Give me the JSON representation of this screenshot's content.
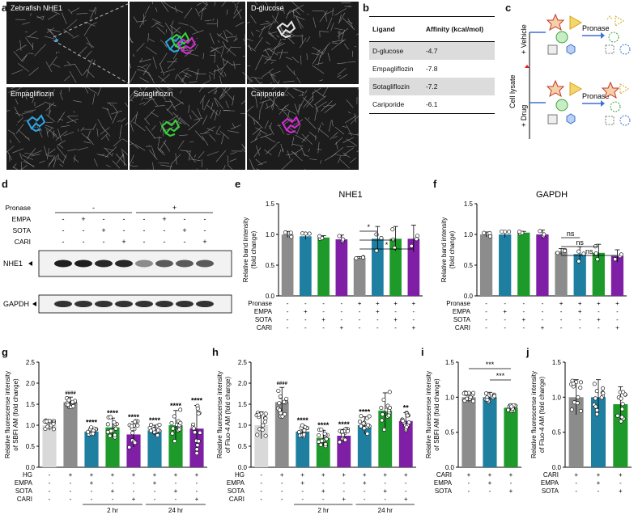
{
  "panels": {
    "a": "a",
    "b": "b",
    "c": "c",
    "d": "d",
    "e": "e",
    "f": "f",
    "g": "g",
    "h": "h",
    "i": "i",
    "j": "j"
  },
  "docking": {
    "tiles": [
      "Zebrafish NHE1",
      "",
      "D-glucose",
      "Empagliflozin",
      "Sotagliflozin",
      "Cariporide"
    ],
    "colors": {
      "cyan": "#2aa6e8",
      "green": "#3ad13a",
      "magenta": "#d62ad6",
      "white": "#e8e8e8"
    }
  },
  "affinity_table": {
    "headers": [
      "Ligand",
      "Affinity (kcal/mol)"
    ],
    "rows": [
      [
        "D-glucose",
        "-4.7"
      ],
      [
        "Empagliflozin",
        "-7.8"
      ],
      [
        "Sotagliflozin",
        "-7.2"
      ],
      [
        "Cariporide",
        "-6.1"
      ]
    ]
  },
  "darts": {
    "cell_lysate": "Cell lysate",
    "vehicle": "+ Vehicle",
    "drug": "+ Drug",
    "pronase": "Pronase"
  },
  "western": {
    "row_labels": [
      "Pronase",
      "EMPA",
      "SOTA",
      "CARI"
    ],
    "pronase_groups": [
      "-",
      "+"
    ],
    "signs": [
      [
        "-",
        "+",
        "-",
        "-",
        "-",
        "+",
        "-",
        "-"
      ],
      [
        "-",
        "-",
        "+",
        "-",
        "-",
        "-",
        "+",
        "-"
      ],
      [
        "-",
        "-",
        "-",
        "+",
        "-",
        "-",
        "-",
        "+"
      ]
    ],
    "bands": [
      "NHE1",
      "GAPDH"
    ],
    "nhe1_intensity": [
      1,
      1,
      0.95,
      0.95,
      0.45,
      0.7,
      0.7,
      0.7
    ],
    "gapdh_intensity": [
      0.9,
      0.9,
      0.9,
      0.9,
      0.9,
      0.9,
      0.9,
      0.9
    ]
  },
  "colors": {
    "gray": "#8c8c8c",
    "light": "#d9d9d9",
    "blue": "#1f7fa1",
    "green": "#1e9a2a",
    "purple": "#7f1fa6"
  },
  "axis_labels": {
    "ef": [
      "Relative band intensity",
      "(fold change)"
    ],
    "g": [
      "Relative fluorescense intensity",
      "of SBFI AM (fold change)"
    ],
    "h": [
      "Relative fluorescense intensity",
      "of Fluo-4 AM (fold change)"
    ],
    "i": [
      "Relative fluorescense intensity",
      "of SBFI AM (fold change)"
    ],
    "j": [
      "Relative fluorescense intensity",
      "of Fluo-4 AM (fold change)"
    ]
  },
  "time_labels": [
    "2 hr",
    "24 hr"
  ],
  "chart_data": [
    {
      "panel": "e",
      "type": "bar",
      "title": "NHE1",
      "ylim": [
        0,
        1.5
      ],
      "yticks": [
        0,
        0.5,
        1.0,
        1.5
      ],
      "values": [
        1.0,
        0.97,
        0.95,
        0.92,
        0.62,
        0.93,
        0.93,
        0.93
      ],
      "errors": [
        0.05,
        0.05,
        0.03,
        0.07,
        0.02,
        0.2,
        0.2,
        0.22
      ],
      "color_keys": [
        "gray",
        "blue",
        "green",
        "purple",
        "gray",
        "blue",
        "green",
        "purple"
      ],
      "treatment_labels": [
        "Pronase",
        "EMPA",
        "SOTA",
        "CARI"
      ],
      "signs": [
        [
          "-",
          "-",
          "-",
          "-",
          "+",
          "+",
          "+",
          "+"
        ],
        [
          "-",
          "+",
          "-",
          "-",
          "-",
          "+",
          "-",
          "-"
        ],
        [
          "-",
          "-",
          "+",
          "-",
          "-",
          "-",
          "+",
          "-"
        ],
        [
          "-",
          "-",
          "-",
          "+",
          "-",
          "-",
          "-",
          "+"
        ]
      ],
      "sig": [
        {
          "from": 4,
          "to": 5,
          "label": "*"
        },
        {
          "from": 4,
          "to": 6,
          "label": "*"
        },
        {
          "from": 4,
          "to": 7,
          "label": "*"
        }
      ]
    },
    {
      "panel": "f",
      "type": "bar",
      "title": "GAPDH",
      "ylim": [
        0,
        1.5
      ],
      "yticks": [
        0,
        0.5,
        1.0,
        1.5
      ],
      "values": [
        1.0,
        1.0,
        1.03,
        1.0,
        0.72,
        0.68,
        0.7,
        0.65
      ],
      "errors": [
        0.04,
        0.05,
        0.02,
        0.07,
        0.05,
        0.12,
        0.14,
        0.1
      ],
      "color_keys": [
        "gray",
        "blue",
        "green",
        "purple",
        "gray",
        "blue",
        "green",
        "purple"
      ],
      "treatment_labels": [
        "Pronase",
        "EMPA",
        "SOTA",
        "CARI"
      ],
      "signs": [
        [
          "-",
          "-",
          "-",
          "-",
          "+",
          "+",
          "+",
          "+"
        ],
        [
          "-",
          "+",
          "-",
          "-",
          "-",
          "+",
          "-",
          "-"
        ],
        [
          "-",
          "-",
          "+",
          "-",
          "-",
          "-",
          "+",
          "-"
        ],
        [
          "-",
          "-",
          "-",
          "+",
          "-",
          "-",
          "-",
          "+"
        ]
      ],
      "sig": [
        {
          "from": 4,
          "to": 5,
          "label": "ns"
        },
        {
          "from": 4,
          "to": 6,
          "label": "ns"
        },
        {
          "from": 4,
          "to": 7,
          "label": "ns"
        }
      ]
    },
    {
      "panel": "g",
      "type": "bar",
      "ylim": [
        0,
        2.5
      ],
      "yticks": [
        0,
        0.5,
        1.0,
        1.5,
        2.0,
        2.5
      ],
      "values": [
        1.0,
        1.55,
        0.85,
        0.95,
        0.78,
        0.88,
        1.0,
        0.92
      ],
      "errors": [
        0.12,
        0.12,
        0.1,
        0.22,
        0.3,
        0.12,
        0.35,
        0.55
      ],
      "color_keys": [
        "light",
        "gray",
        "blue",
        "green",
        "purple",
        "blue",
        "green",
        "purple"
      ],
      "treatment_labels": [
        "HG",
        "EMPA",
        "SOTA",
        "CARI"
      ],
      "signs": [
        [
          "-",
          "+",
          "+",
          "+",
          "+",
          "+",
          "+",
          "+"
        ],
        [
          "-",
          "-",
          "+",
          "-",
          "-",
          "+",
          "-",
          "-"
        ],
        [
          "-",
          "-",
          "-",
          "+",
          "-",
          "-",
          "+",
          "-"
        ],
        [
          "-",
          "-",
          "-",
          "-",
          "+",
          "-",
          "-",
          "+"
        ]
      ],
      "stars": [
        "",
        "####",
        "****",
        "****",
        "****",
        "****",
        "****",
        "****"
      ],
      "time_groups": [
        {
          "label": "2 hr",
          "from": 2,
          "to": 4
        },
        {
          "label": "24 hr",
          "from": 5,
          "to": 7
        }
      ]
    },
    {
      "panel": "h",
      "type": "bar",
      "ylim": [
        0,
        2.5
      ],
      "yticks": [
        0,
        0.5,
        1.0,
        1.5,
        2.0,
        2.5
      ],
      "values": [
        1.0,
        1.55,
        0.85,
        0.7,
        0.75,
        1.0,
        1.35,
        1.1
      ],
      "errors": [
        0.32,
        0.35,
        0.15,
        0.18,
        0.15,
        0.2,
        0.42,
        0.2
      ],
      "color_keys": [
        "light",
        "gray",
        "blue",
        "green",
        "purple",
        "blue",
        "green",
        "purple"
      ],
      "treatment_labels": [
        "HG",
        "EMPA",
        "SOTA",
        "CARI"
      ],
      "signs": [
        [
          "-",
          "+",
          "+",
          "+",
          "+",
          "+",
          "+",
          "+"
        ],
        [
          "-",
          "-",
          "+",
          "-",
          "-",
          "+",
          "-",
          "-"
        ],
        [
          "-",
          "-",
          "-",
          "+",
          "-",
          "-",
          "+",
          "-"
        ],
        [
          "-",
          "-",
          "-",
          "-",
          "+",
          "-",
          "-",
          "+"
        ]
      ],
      "stars": [
        "",
        "####",
        "****",
        "****",
        "****",
        "****",
        "",
        "**"
      ],
      "time_groups": [
        {
          "label": "2 hr",
          "from": 2,
          "to": 4
        },
        {
          "label": "24 hr",
          "from": 5,
          "to": 7
        }
      ]
    },
    {
      "panel": "i",
      "type": "bar",
      "ylim": [
        0,
        1.5
      ],
      "yticks": [
        0,
        0.5,
        1.0,
        1.5
      ],
      "values": [
        1.0,
        1.0,
        0.85
      ],
      "errors": [
        0.07,
        0.07,
        0.05
      ],
      "color_keys": [
        "gray",
        "blue",
        "green"
      ],
      "treatment_labels": [
        "CARI",
        "EMPA",
        "SOTA"
      ],
      "signs": [
        [
          "+",
          "+",
          "+"
        ],
        [
          "-",
          "+",
          "-"
        ],
        [
          "-",
          "-",
          "+"
        ]
      ],
      "sig": [
        {
          "from": 0,
          "to": 2,
          "label": "***"
        },
        {
          "from": 1,
          "to": 2,
          "label": "***"
        }
      ]
    },
    {
      "panel": "j",
      "type": "bar",
      "ylim": [
        0,
        1.5
      ],
      "yticks": [
        0,
        0.5,
        1.0,
        1.5
      ],
      "values": [
        1.0,
        1.0,
        0.9
      ],
      "errors": [
        0.25,
        0.25,
        0.25
      ],
      "color_keys": [
        "gray",
        "blue",
        "green"
      ],
      "treatment_labels": [
        "CARI",
        "EMPA",
        "SOTA"
      ],
      "signs": [
        [
          "+",
          "+",
          "+"
        ],
        [
          "-",
          "+",
          "-"
        ],
        [
          "-",
          "-",
          "+"
        ]
      ],
      "sig": []
    }
  ]
}
